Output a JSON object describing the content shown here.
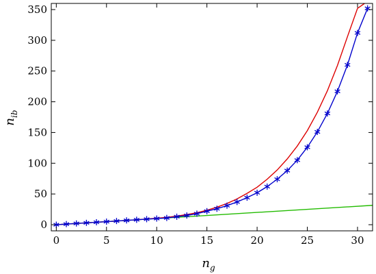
{
  "chart_data": {
    "type": "line",
    "title": "",
    "xlabel": {
      "base": "n",
      "sub": "g"
    },
    "ylabel": {
      "base": "n",
      "sub": "ib"
    },
    "xlim": [
      -0.5,
      31.5
    ],
    "ylim": [
      -10,
      360
    ],
    "xticks": [
      0,
      5,
      10,
      15,
      20,
      25,
      30
    ],
    "yticks": [
      0,
      50,
      100,
      150,
      200,
      250,
      300,
      350
    ],
    "xtick_labels": [
      "0",
      "5",
      "10",
      "15",
      "20",
      "25",
      "30"
    ],
    "ytick_labels": [
      "0",
      "50",
      "100",
      "150",
      "200",
      "250",
      "300",
      "350"
    ],
    "grid": false,
    "legend": "none",
    "series": [
      {
        "kind": "line-markers",
        "color": "#0000cc",
        "marker": "asterisk",
        "x": [
          0,
          1,
          2,
          3,
          4,
          5,
          6,
          7,
          8,
          9,
          10,
          11,
          12,
          13,
          14,
          15,
          16,
          17,
          18,
          19,
          20,
          21,
          22,
          23,
          24,
          25,
          26,
          27,
          28,
          29,
          30,
          31
        ],
        "y": [
          0,
          1,
          2,
          3,
          4,
          5,
          6,
          7,
          8,
          9,
          10,
          11,
          13,
          15,
          18,
          22,
          26,
          31,
          37,
          44,
          52,
          62,
          74,
          88,
          105,
          126,
          151,
          181,
          217,
          260,
          312,
          352
        ]
      },
      {
        "kind": "line",
        "color": "#dd0000",
        "x": [
          0,
          2,
          4,
          6,
          8,
          10,
          11,
          12,
          13,
          14,
          15,
          16,
          17,
          18,
          19,
          20,
          21,
          22,
          23,
          24,
          25,
          26,
          27,
          28,
          29,
          30,
          30.7
        ],
        "y": [
          0,
          2,
          4,
          6,
          8,
          10.5,
          12,
          14,
          16.5,
          19.5,
          23.5,
          28.5,
          34.5,
          42,
          51,
          61,
          74,
          89,
          107,
          128,
          153,
          183,
          218,
          259,
          306,
          352,
          360
        ]
      },
      {
        "kind": "line",
        "color": "#22bb00",
        "x": [
          0,
          31.5
        ],
        "y": [
          0,
          31.5
        ]
      }
    ]
  }
}
